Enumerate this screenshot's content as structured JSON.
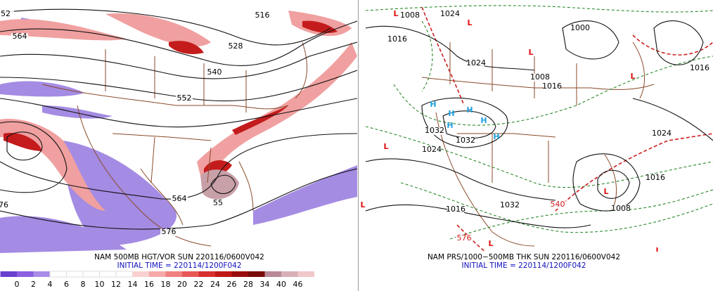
{
  "left_panel": {
    "contour_labels": [
      "52",
      "516",
      "564",
      "528",
      "540",
      "552",
      "564",
      "55",
      "576",
      "76"
    ],
    "caption": "NAM 500MB HGT/VOR SUN 220116/0600V042",
    "initial_time": "INITIAL TIME = 220114/1200F042",
    "colorbar_labels": [
      0,
      2,
      4,
      6,
      8,
      10,
      12,
      14,
      16,
      18,
      20,
      22,
      24,
      26,
      28,
      34,
      40,
      46
    ]
  },
  "right_panel": {
    "pressure_labels": [
      "1008",
      "1024",
      "1016",
      "1000",
      "1024",
      "1008",
      "1016",
      "1016",
      "1024",
      "1032",
      "1024",
      "1032",
      "1016",
      "1032",
      "1016",
      "1008"
    ],
    "thickness_labels": [
      "540",
      "576"
    ],
    "lows": [
      "L",
      "L",
      "L",
      "L",
      "L",
      "L",
      "L",
      "L",
      "L"
    ],
    "highs": [
      "H",
      "H",
      "H",
      "H",
      "H",
      "H"
    ],
    "caption": "NAM PRS/1000−500MB THK SUN 220116/0600V042",
    "initial_time": "INITIAL TIME = 220114/1200F042"
  }
}
